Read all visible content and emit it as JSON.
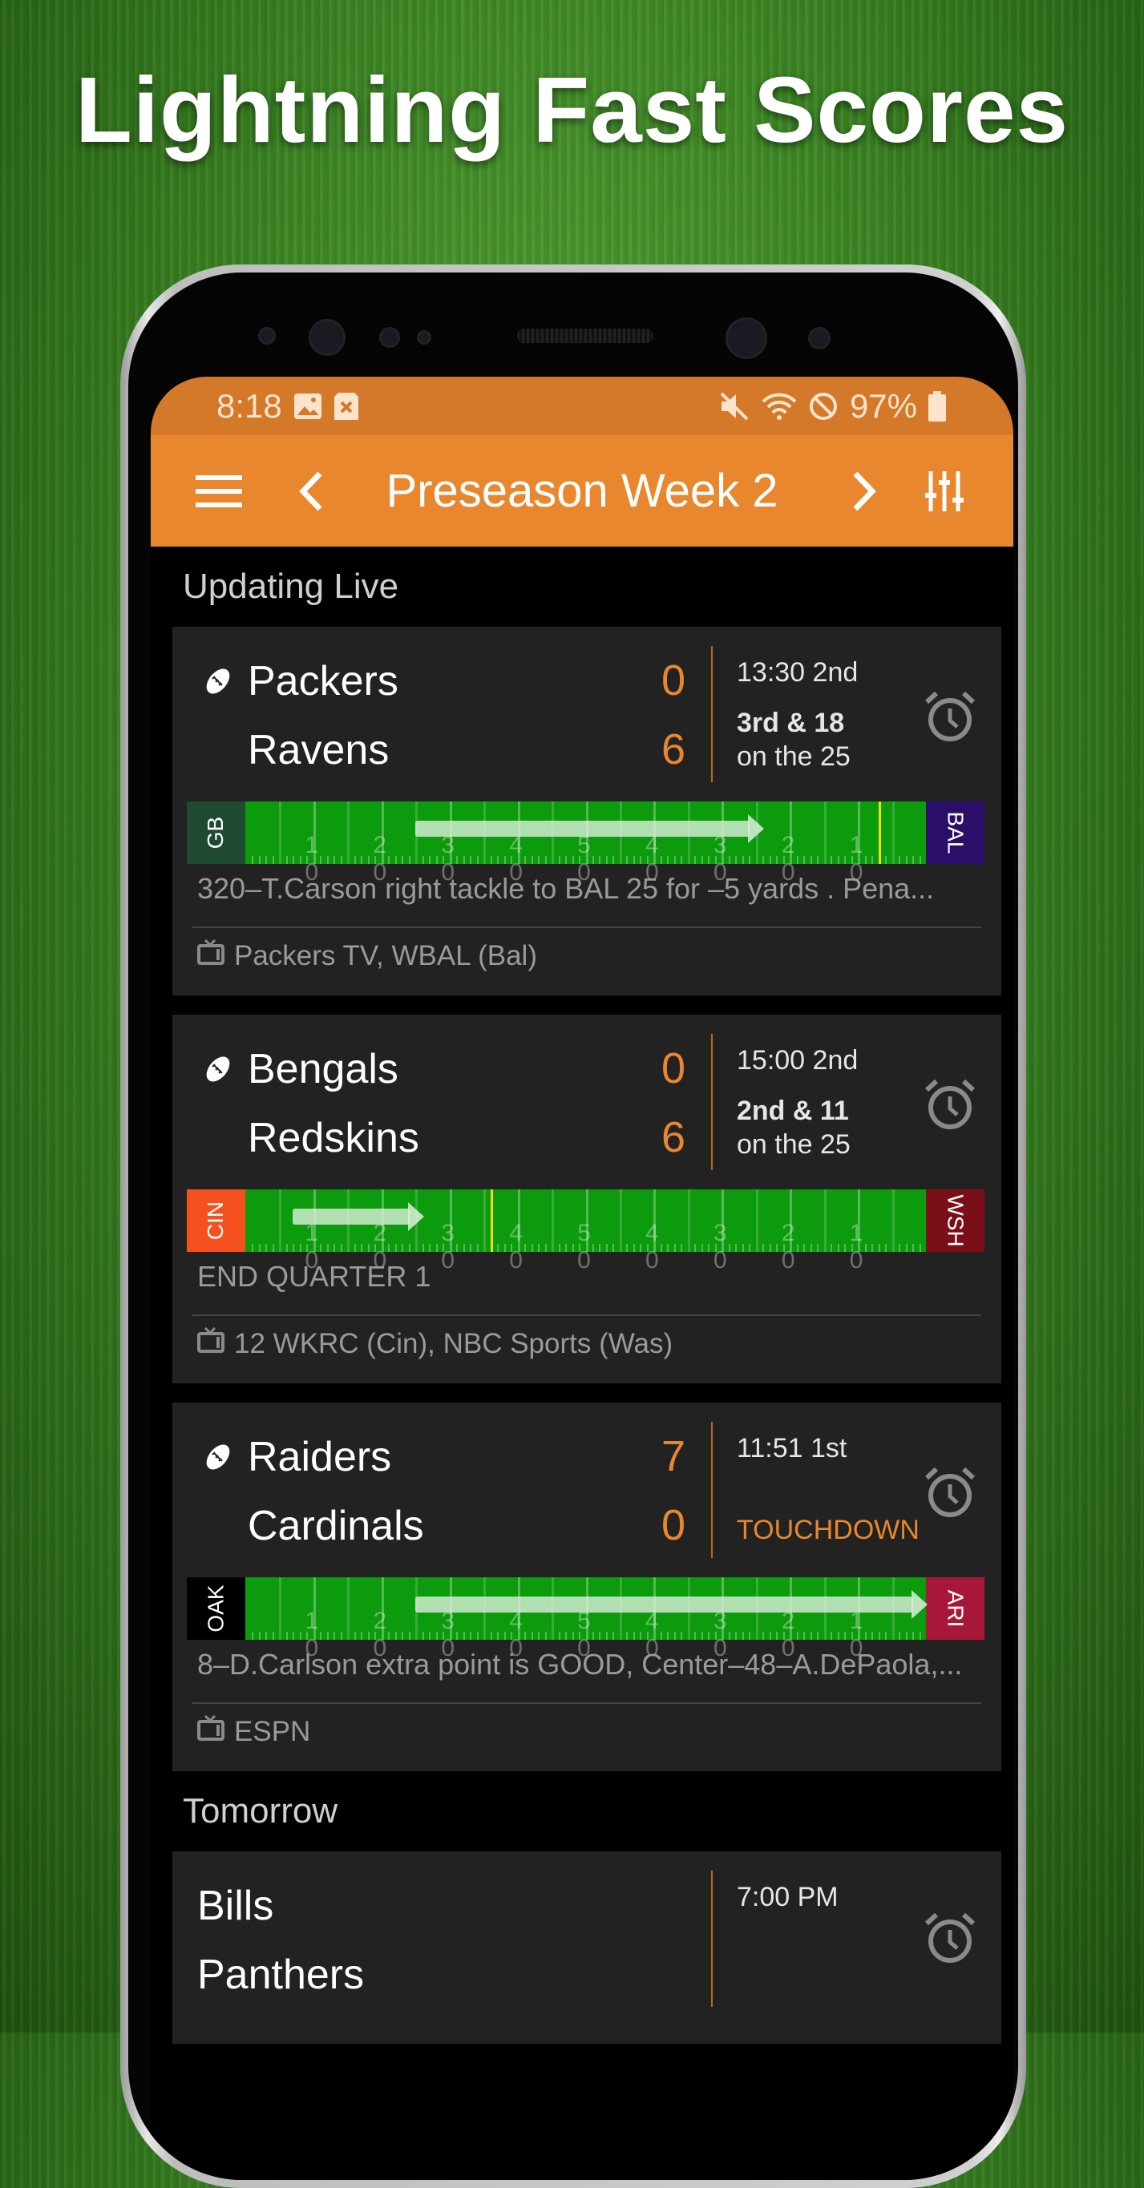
{
  "headline": "Lightning Fast Scores",
  "status_bar": {
    "time": "8:18",
    "battery": "97%",
    "icons": [
      "image-icon",
      "sd-card-icon",
      "mute-icon",
      "wifi-icon",
      "do-not-disturb-icon",
      "battery-icon"
    ]
  },
  "toolbar": {
    "title": "Preseason Week 2",
    "icons": [
      "menu-icon",
      "chevron-left-icon",
      "chevron-right-icon",
      "filter-sliders-icon"
    ]
  },
  "colors": {
    "toolbar": "#E8872D",
    "status_bar": "#D4782A",
    "score": "#E8872D",
    "field": "#0c9b0c",
    "first_down_line": "#f0e000"
  },
  "field_labels": [
    "1 0",
    "2 0",
    "3 0",
    "4 0",
    "5 0",
    "4 0",
    "3 0",
    "2 0",
    "1 0"
  ],
  "sections": [
    {
      "title": "Updating Live",
      "games": [
        {
          "team1": "Packers",
          "team2": "Ravens",
          "score1": "0",
          "score2": "6",
          "favorite": "team2",
          "possession": true,
          "clock": "13:30 2nd",
          "down": "3rd & 18",
          "spot": "on the 25",
          "away_abbr": "GB",
          "home_abbr": "BAL",
          "away_color": "#1E4A32",
          "home_color": "#2A0E6A",
          "drive_start_yard": 25,
          "ball_yard": 76,
          "first_down_yard": 93,
          "last_play": "320–T.Carson right tackle to BAL 25 for –5 yards . Pena...",
          "tv": "Packers TV, WBAL (Bal)"
        },
        {
          "team1": "Bengals",
          "team2": "Redskins",
          "score1": "0",
          "score2": "6",
          "possession": true,
          "clock": "15:00 2nd",
          "down": "2nd & 11",
          "spot": "on the 25",
          "away_abbr": "CIN",
          "home_abbr": "WSH",
          "away_color": "#F4511E",
          "home_color": "#7A0F17",
          "drive_start_yard": 7,
          "ball_yard": 26,
          "first_down_yard": 36,
          "last_play": "END QUARTER 1",
          "tv": "12 WKRC (Cin), NBC Sports (Was)"
        },
        {
          "team1": "Raiders",
          "team2": "Cardinals",
          "score1": "7",
          "score2": "0",
          "possession": true,
          "clock": "11:51 1st",
          "event": "TOUCHDOWN",
          "away_abbr": "OAK",
          "home_abbr": "ARI",
          "away_color": "#000000",
          "home_color": "#A6173A",
          "drive_start_yard": 25,
          "ball_yard": 100,
          "last_play": "8–D.Carlson extra point is GOOD, Center–48–A.DePaola,...",
          "tv": "ESPN"
        }
      ]
    },
    {
      "title": "Tomorrow",
      "games": [
        {
          "team1": "Bills",
          "team2": "Panthers",
          "clock": "7:00 PM"
        }
      ]
    }
  ]
}
